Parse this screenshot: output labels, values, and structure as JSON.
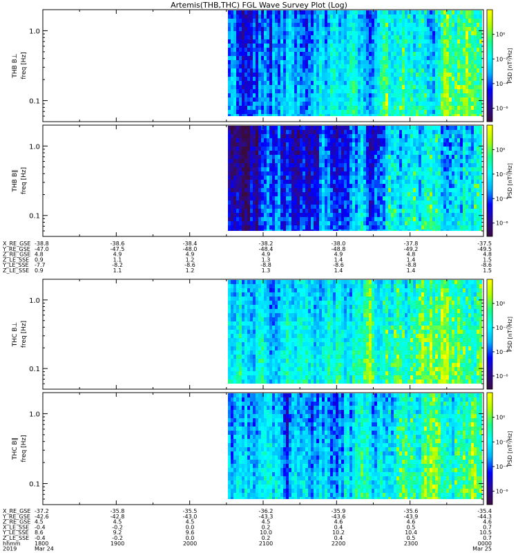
{
  "title": "Artemis(THB,THC) FGL Wave Survey Plot (Log)",
  "colormap": [
    "#3a0b3f",
    "#2a0a96",
    "#0000ff",
    "#00b4ff",
    "#00ffff",
    "#19ff8a",
    "#b4ff00",
    "#ffff00"
  ],
  "chart_data": [
    {
      "type": "heatmap",
      "panel": "THB B⊥",
      "ylabel": "freq [Hz]",
      "yscale": "log",
      "ylim": [
        0.05,
        2.0
      ],
      "yticks": [
        "1.0",
        "0.1"
      ],
      "colorbar_label": "PSD [nT²/Hz]",
      "colorbar_ticks": [
        "10⁰",
        "10⁻²",
        "10⁻⁴",
        "10⁻⁶"
      ],
      "data_start": "2048",
      "data_end": "0000"
    },
    {
      "type": "heatmap",
      "panel": "THB B∥",
      "ylabel": "freq [Hz]",
      "yscale": "log",
      "ylim": [
        0.05,
        2.0
      ],
      "yticks": [
        "1.0",
        "0.1"
      ],
      "colorbar_label": "PSD [nT²/Hz]",
      "colorbar_ticks": [
        "10⁰",
        "10⁻²",
        "10⁻⁴",
        "10⁻⁶"
      ],
      "data_start": "2048",
      "data_end": "0000"
    },
    {
      "type": "heatmap",
      "panel": "THC B⊥",
      "ylabel": "freq [Hz]",
      "yscale": "log",
      "ylim": [
        0.05,
        2.0
      ],
      "yticks": [
        "1.0",
        "0.1"
      ],
      "colorbar_label": "PSD [nT²/Hz]",
      "colorbar_ticks": [
        "10⁰",
        "10⁻²",
        "10⁻⁴",
        "10⁻⁶"
      ],
      "data_start": "2048",
      "data_end": "0000"
    },
    {
      "type": "heatmap",
      "panel": "THC B∥",
      "ylabel": "freq [Hz]",
      "yscale": "log",
      "ylim": [
        0.05,
        2.0
      ],
      "yticks": [
        "1.0",
        "0.1"
      ],
      "colorbar_label": "PSD [nT²/Hz]",
      "colorbar_ticks": [
        "10⁰",
        "10⁻²",
        "10⁻⁴",
        "10⁻⁶"
      ],
      "data_start": "2048",
      "data_end": "0000"
    }
  ],
  "ephem_thb": {
    "labels": [
      "X_RE_GSE",
      "Y_RE_GSE",
      "Z_RE_GSE",
      "Z_LE_SSE",
      "Y_LE_SSE",
      "Z_LE_SSE"
    ],
    "rows": [
      [
        "-38.8",
        "-38.6",
        "-38.4",
        "-38.2",
        "-38.0",
        "-37.8",
        "-37.5"
      ],
      [
        "-47.0",
        "-47.5",
        "-48.0",
        "-48.4",
        "-48.8",
        "-49.2",
        "-49.5"
      ],
      [
        "4.8",
        "4.9",
        "4.9",
        "4.9",
        "4.9",
        "4.8",
        "4.8"
      ],
      [
        "0.9",
        "1.1",
        "1.2",
        "1.3",
        "1.4",
        "1.4",
        "1.5"
      ],
      [
        "-7.7",
        "-8.2",
        "-8.6",
        "-8.8",
        "-8.6",
        "-8.8",
        "-8.6"
      ],
      [
        "0.9",
        "1.1",
        "1.2",
        "1.3",
        "1.4",
        "1.4",
        "1.5"
      ]
    ]
  },
  "ephem_thc": {
    "labels": [
      "X_RE_GSE",
      "Y_RE_GSE",
      "Z_RE_GSE",
      "X_LE_SSE",
      "Y_LE_SSE",
      "Z_LE_SSE",
      "hhmm",
      "2019"
    ],
    "rows": [
      [
        "-37.2",
        "-35.8",
        "-35.5",
        "-36.2",
        "-35.9",
        "-35.6",
        "-35.4"
      ],
      [
        "-42.6",
        "-42.8",
        "-43.0",
        "-43.3",
        "-43.6",
        "-43.9",
        "-44.3"
      ],
      [
        "4.5",
        "4.5",
        "4.5",
        "4.5",
        "4.6",
        "4.6",
        "4.6"
      ],
      [
        "-0.4",
        "-0.2",
        "0.0",
        "0.2",
        "0.4",
        "0.5",
        "0.7"
      ],
      [
        "8.6",
        "9.2",
        "9.6",
        "10.0",
        "10.2",
        "10.4",
        "10.5"
      ],
      [
        "-0.4",
        "-0.2",
        "0.0",
        "0.2",
        "0.4",
        "0.5",
        "0.7"
      ],
      [
        "1800",
        "1900",
        "2000",
        "2100",
        "2200",
        "2300",
        "0000"
      ],
      [
        "Mar 24",
        "",
        "",
        "",
        "",
        "",
        "Mar 25"
      ]
    ]
  }
}
